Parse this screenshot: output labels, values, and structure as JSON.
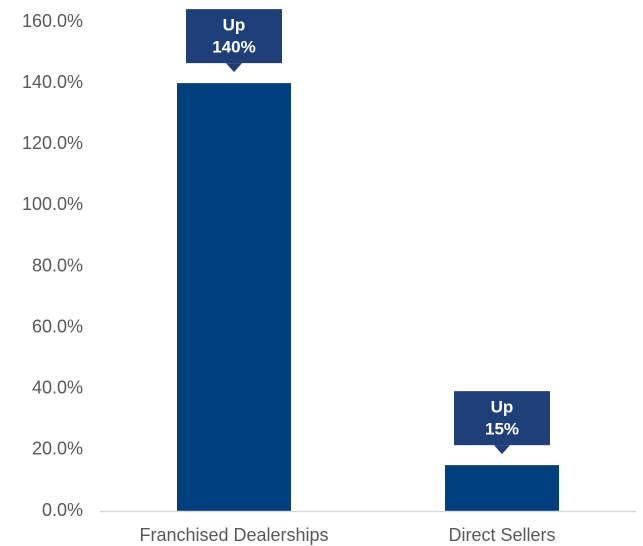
{
  "chart_data": {
    "type": "bar",
    "title": "",
    "xlabel": "",
    "ylabel": "",
    "categories": [
      "Franchised Dealerships",
      "Direct Sellers"
    ],
    "values": [
      140,
      15
    ],
    "ylim": [
      0,
      160
    ],
    "y_ticks": [
      "0.0%",
      "20.0%",
      "40.0%",
      "60.0%",
      "80.0%",
      "100.0%",
      "120.0%",
      "140.0%",
      "160.0%"
    ],
    "grid": false,
    "callouts": [
      [
        "Up",
        "140%"
      ],
      [
        "Up",
        "15%"
      ]
    ]
  },
  "colors": {
    "bar": "#003f7d",
    "callout": "#1f3f78",
    "text": "#595959",
    "axis": "#d9d9d9"
  }
}
